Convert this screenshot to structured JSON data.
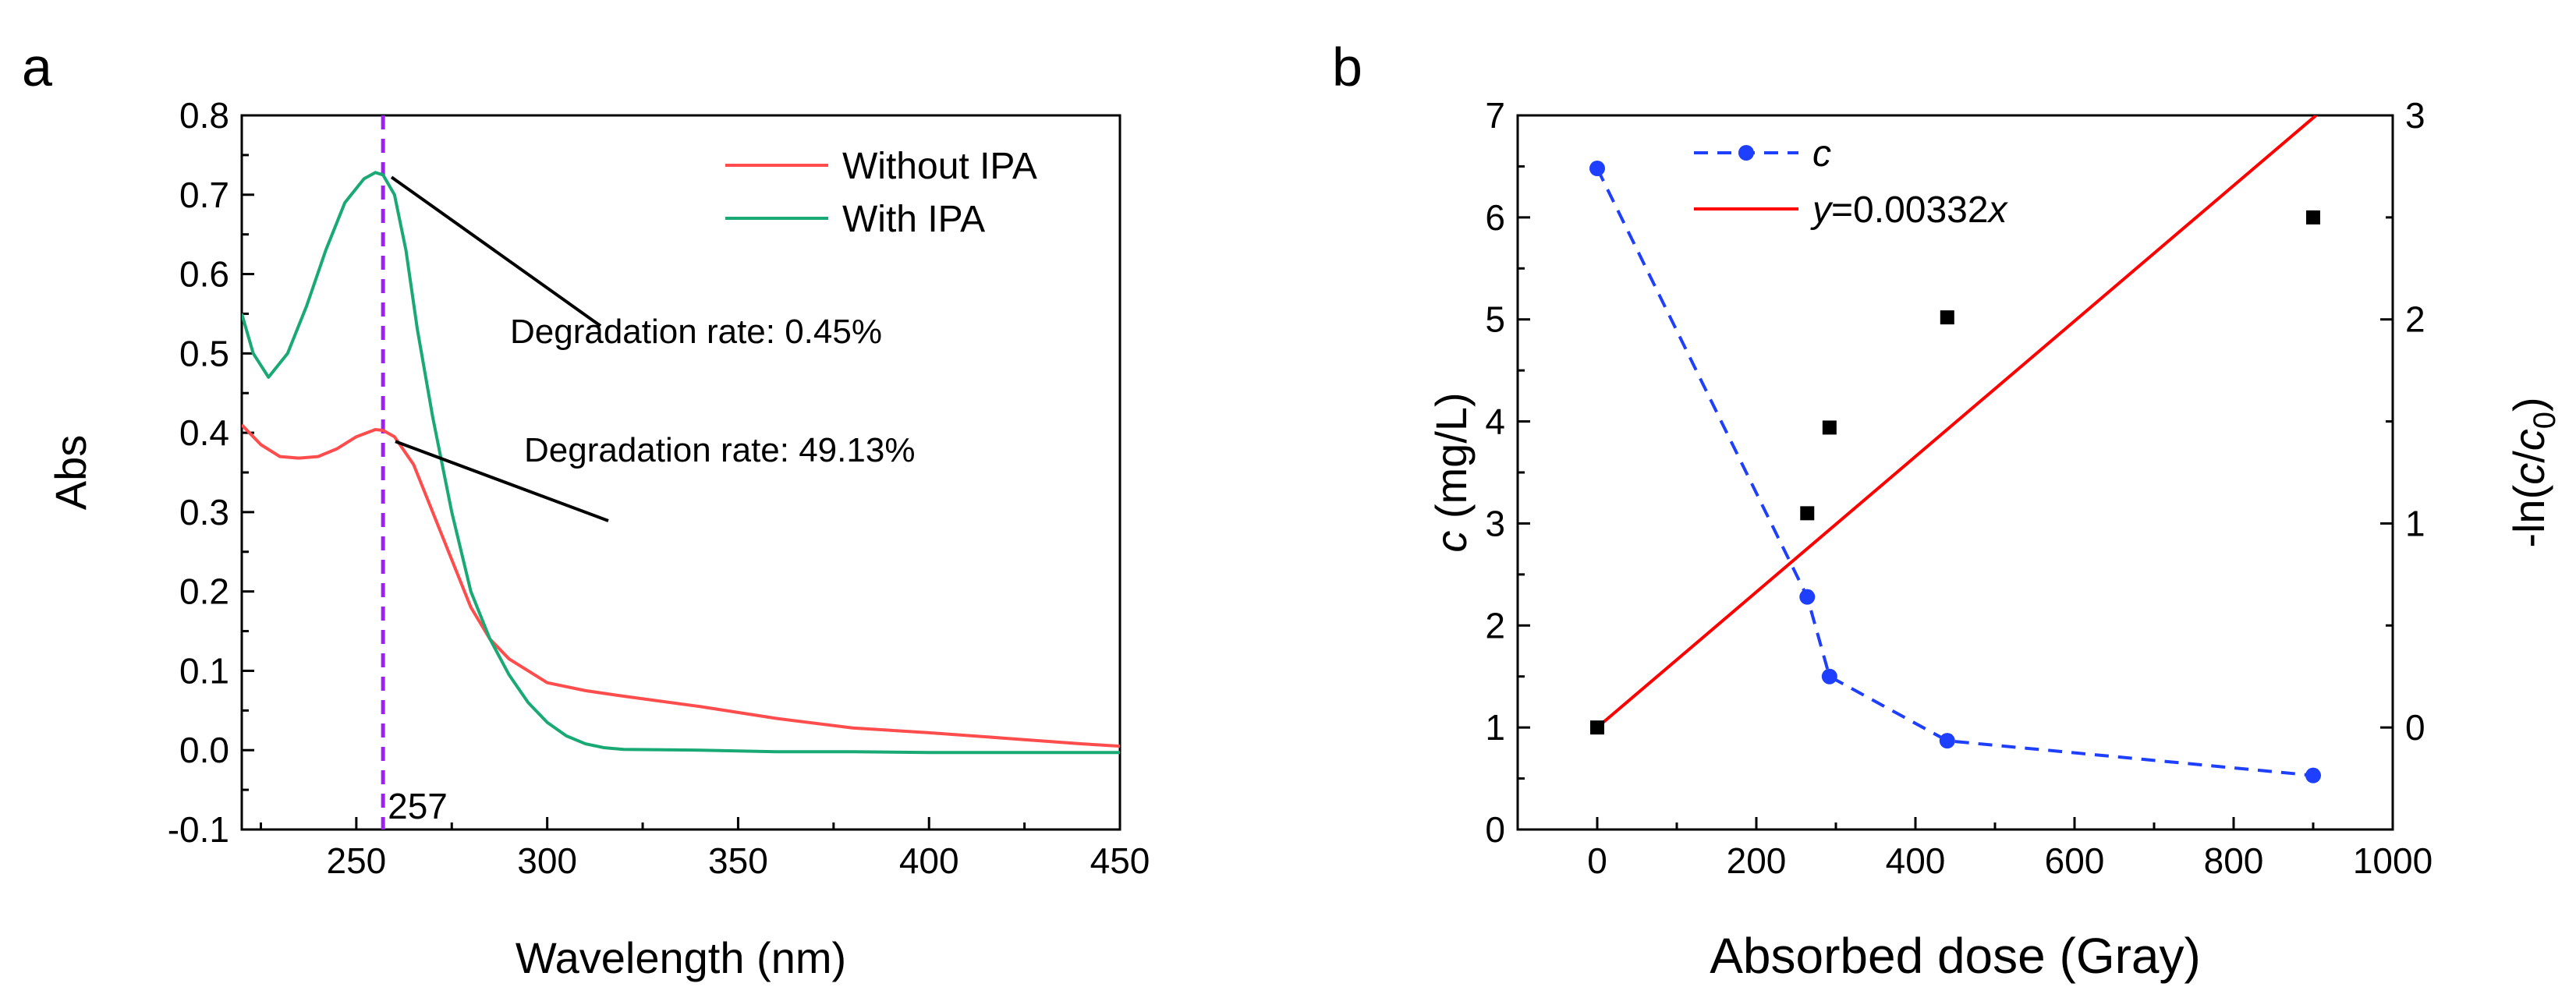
{
  "chart_data": [
    {
      "panel": "a",
      "type": "line",
      "xlabel": "Wavelength (nm)",
      "ylabel": "Abs",
      "xlim": [
        220,
        450
      ],
      "ylim": [
        -0.1,
        0.8
      ],
      "x_ticks": [
        250,
        300,
        350,
        400,
        450
      ],
      "y_ticks": [
        -0.1,
        0.0,
        0.1,
        0.2,
        0.3,
        0.4,
        0.5,
        0.6,
        0.7,
        0.8
      ],
      "x_tick_labels": [
        "250",
        "300",
        "350",
        "400",
        "450"
      ],
      "y_tick_labels": [
        "-0.1",
        "0.0",
        "0.1",
        "0.2",
        "0.3",
        "0.4",
        "0.5",
        "0.6",
        "0.7",
        "0.8"
      ],
      "legend_position": "top-right",
      "series": [
        {
          "name": "Without IPA",
          "color": "#ff4d4d",
          "x": [
            220,
            225,
            230,
            235,
            240,
            245,
            250,
            255,
            257,
            260,
            265,
            270,
            275,
            280,
            285,
            290,
            300,
            310,
            320,
            340,
            360,
            380,
            400,
            420,
            440,
            450
          ],
          "y": [
            0.41,
            0.385,
            0.37,
            0.368,
            0.37,
            0.38,
            0.395,
            0.404,
            0.403,
            0.395,
            0.36,
            0.3,
            0.24,
            0.18,
            0.14,
            0.115,
            0.085,
            0.075,
            0.068,
            0.055,
            0.04,
            0.028,
            0.022,
            0.015,
            0.008,
            0.005
          ]
        },
        {
          "name": "With IPA",
          "color": "#19a974",
          "x": [
            220,
            223,
            227,
            232,
            237,
            242,
            247,
            252,
            255,
            257,
            260,
            263,
            266,
            270,
            275,
            280,
            285,
            290,
            295,
            300,
            305,
            310,
            315,
            320,
            340,
            360,
            380,
            400,
            420,
            440,
            450
          ],
          "y": [
            0.55,
            0.5,
            0.47,
            0.5,
            0.56,
            0.63,
            0.69,
            0.72,
            0.728,
            0.725,
            0.7,
            0.63,
            0.53,
            0.42,
            0.3,
            0.2,
            0.14,
            0.095,
            0.06,
            0.035,
            0.018,
            0.008,
            0.003,
            0.001,
            0.0,
            -0.002,
            -0.002,
            -0.003,
            -0.003,
            -0.003,
            -0.003
          ]
        }
      ],
      "vline": {
        "x": 257,
        "label": "257",
        "color": "#a020f0"
      },
      "annotations": [
        {
          "text": "Degradation rate: 0.45%",
          "point": [
            258,
            0.728
          ]
        },
        {
          "text": "Degradation rate: 49.13%",
          "point": [
            259,
            0.395
          ]
        }
      ]
    },
    {
      "panel": "b",
      "type": "scatter",
      "xlabel": "Absorbed dose (Gray)",
      "ylabel_italic": "c",
      "ylabel_rest": " (mg/L)",
      "y2label": "-ln(c/c0)",
      "y2label_parts": [
        "-ln(",
        "c",
        "/",
        "c",
        "0",
        ")"
      ],
      "xlim": [
        -100,
        1000
      ],
      "ylim": [
        0,
        7
      ],
      "y2lim": [
        -0.5,
        3
      ],
      "x_ticks": [
        0,
        200,
        400,
        600,
        800,
        1000
      ],
      "x_tick_labels": [
        "0",
        "200",
        "400",
        "600",
        "800",
        "1000"
      ],
      "y_ticks": [
        0,
        1,
        2,
        3,
        4,
        5,
        6,
        7
      ],
      "y_tick_labels": [
        "0",
        "1",
        "2",
        "3",
        "4",
        "5",
        "6",
        "7"
      ],
      "y2_ticks": [
        0,
        1,
        2,
        3
      ],
      "y2_tick_labels": [
        "0",
        "1",
        "2",
        "3"
      ],
      "legend_position": "top-left",
      "series": [
        {
          "name": "c",
          "style": "dashed-line-circle",
          "axis": "left",
          "color": "#1f3fff",
          "x": [
            0,
            264,
            292,
            440,
            900
          ],
          "y": [
            6.48,
            2.28,
            1.5,
            0.87,
            0.53
          ]
        },
        {
          "name": "-ln(c/c0)",
          "style": "square-marker",
          "axis": "right",
          "color": "#000000",
          "x": [
            0,
            264,
            292,
            440,
            900
          ],
          "y": [
            0.0,
            1.05,
            1.47,
            2.01,
            2.5
          ]
        },
        {
          "name": "y=0.00332x",
          "style": "solid-line",
          "axis": "right",
          "color": "#ff0000",
          "slope": 0.00332,
          "x": [
            0,
            904
          ],
          "y": [
            0.0,
            3.0
          ]
        }
      ],
      "legend": [
        {
          "italic_part": "c",
          "rest": ""
        },
        {
          "italic_part": "y",
          "rest": "=0.00332",
          "italic_tail": "x"
        }
      ]
    }
  ],
  "panel_labels": {
    "a": "a",
    "b": "b"
  }
}
